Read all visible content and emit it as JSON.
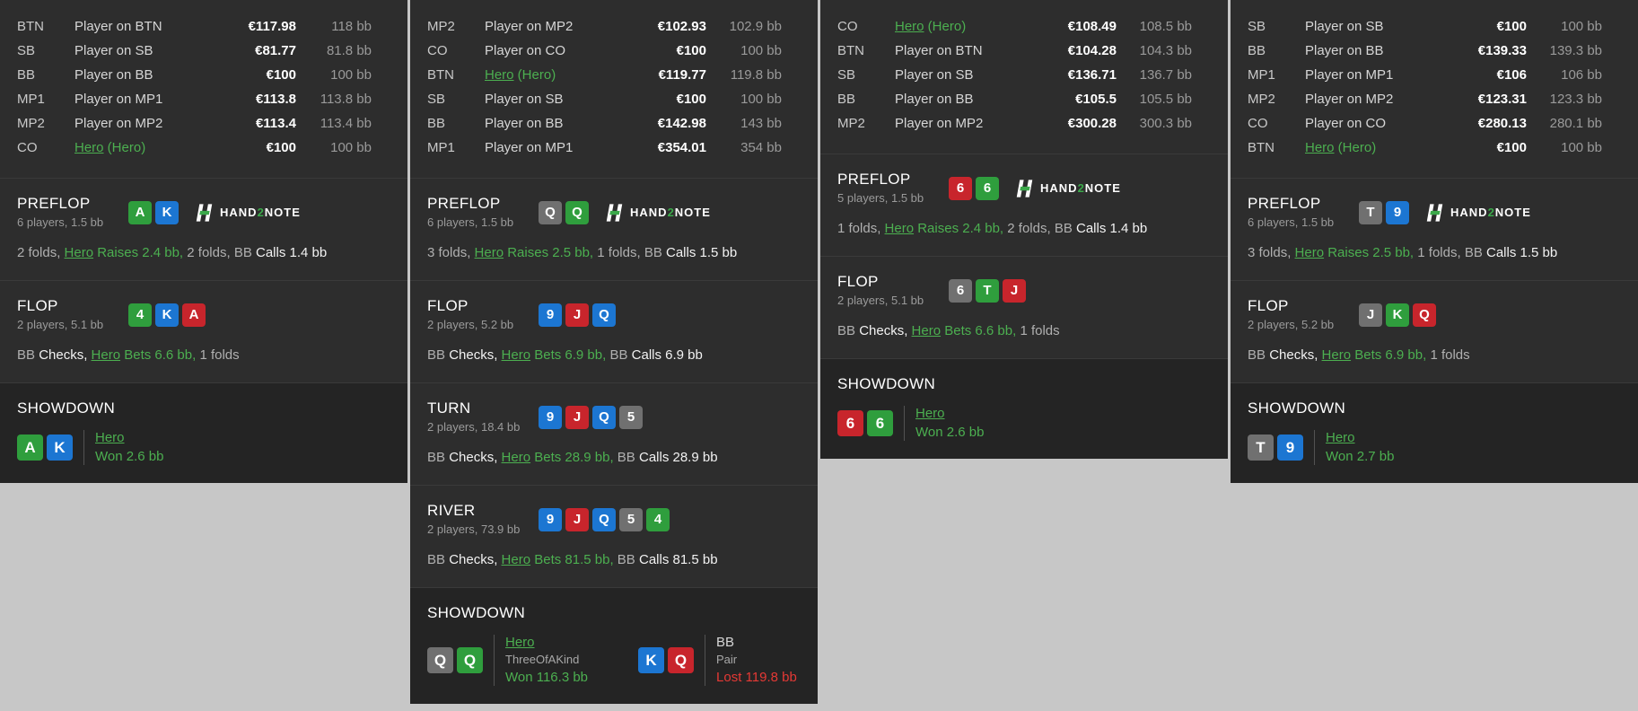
{
  "colors": {
    "page_bg": "#c7c7c7",
    "panel_bg": "#2d2d2d",
    "showdown_bg": "#242424",
    "hero_green": "#4caf50",
    "loss_red": "#e53935",
    "card_green": "#2f9e3d",
    "card_blue": "#1c76d2",
    "card_red": "#c8252c",
    "card_gray": "#707070"
  },
  "logo": {
    "left": "HAND",
    "digit": "2",
    "right": "NOTE"
  },
  "panels": [
    {
      "players": [
        {
          "pos": "BTN",
          "name": [
            {
              "text": "Player on BTN",
              "style": "plain"
            }
          ],
          "stack": "€117.98",
          "bb": "118 bb"
        },
        {
          "pos": "SB",
          "name": [
            {
              "text": "Player on SB",
              "style": "plain"
            }
          ],
          "stack": "€81.77",
          "bb": "81.8 bb"
        },
        {
          "pos": "BB",
          "name": [
            {
              "text": "Player on BB",
              "style": "plain"
            }
          ],
          "stack": "€100",
          "bb": "100 bb"
        },
        {
          "pos": "MP1",
          "name": [
            {
              "text": "Player on MP1",
              "style": "plain"
            }
          ],
          "stack": "€113.8",
          "bb": "113.8 bb"
        },
        {
          "pos": "MP2",
          "name": [
            {
              "text": "Player on MP2",
              "style": "plain"
            }
          ],
          "stack": "€113.4",
          "bb": "113.4 bb"
        },
        {
          "pos": "CO",
          "name": [
            {
              "text": "Hero",
              "style": "hero-link"
            },
            {
              "text": " (Hero)",
              "style": "hero"
            }
          ],
          "stack": "€100",
          "bb": "100 bb"
        }
      ],
      "streets": [
        {
          "type": "street",
          "name": "PREFLOP",
          "subtitle": "6 players, 1.5 bb",
          "logo": true,
          "cards": [
            {
              "rank": "A",
              "color": "green"
            },
            {
              "rank": "K",
              "color": "blue"
            }
          ],
          "action": [
            {
              "text": "2 folds, ",
              "style": "muted"
            },
            {
              "text": "Hero",
              "style": "hero-link"
            },
            {
              "text": " Raises 2.4 bb, ",
              "style": "hero"
            },
            {
              "text": "2 folds, ",
              "style": "muted"
            },
            {
              "text": "BB ",
              "style": "muted"
            },
            {
              "text": "Calls 1.4 bb",
              "style": "strong"
            }
          ]
        },
        {
          "type": "street",
          "name": "FLOP",
          "subtitle": "2 players, 5.1 bb",
          "logo": false,
          "cards": [
            {
              "rank": "4",
              "color": "green"
            },
            {
              "rank": "K",
              "color": "blue"
            },
            {
              "rank": "A",
              "color": "red"
            }
          ],
          "action": [
            {
              "text": "BB ",
              "style": "muted"
            },
            {
              "text": "Checks, ",
              "style": "strong"
            },
            {
              "text": "Hero",
              "style": "hero-link"
            },
            {
              "text": " Bets 6.6 bb, ",
              "style": "hero"
            },
            {
              "text": "1 folds",
              "style": "muted"
            }
          ]
        },
        {
          "type": "showdown",
          "name": "SHOWDOWN",
          "results": [
            {
              "cards": [
                {
                  "rank": "A",
                  "color": "green"
                },
                {
                  "rank": "K",
                  "color": "blue"
                }
              ],
              "name": [
                {
                  "text": "Hero",
                  "style": "hero-link"
                }
              ],
              "hand": null,
              "result": "Won 2.6 bb",
              "outcome": "win"
            }
          ]
        }
      ]
    },
    {
      "players": [
        {
          "pos": "MP2",
          "name": [
            {
              "text": "Player on MP2",
              "style": "plain"
            }
          ],
          "stack": "€102.93",
          "bb": "102.9 bb"
        },
        {
          "pos": "CO",
          "name": [
            {
              "text": "Player on CO",
              "style": "plain"
            }
          ],
          "stack": "€100",
          "bb": "100 bb"
        },
        {
          "pos": "BTN",
          "name": [
            {
              "text": "Hero",
              "style": "hero-link"
            },
            {
              "text": " (Hero)",
              "style": "hero"
            }
          ],
          "stack": "€119.77",
          "bb": "119.8 bb"
        },
        {
          "pos": "SB",
          "name": [
            {
              "text": "Player on SB",
              "style": "plain"
            }
          ],
          "stack": "€100",
          "bb": "100 bb"
        },
        {
          "pos": "BB",
          "name": [
            {
              "text": "Player on BB",
              "style": "plain"
            }
          ],
          "stack": "€142.98",
          "bb": "143 bb"
        },
        {
          "pos": "MP1",
          "name": [
            {
              "text": "Player on MP1",
              "style": "plain"
            }
          ],
          "stack": "€354.01",
          "bb": "354 bb"
        }
      ],
      "streets": [
        {
          "type": "street",
          "name": "PREFLOP",
          "subtitle": "6 players, 1.5 bb",
          "logo": true,
          "cards": [
            {
              "rank": "Q",
              "color": "gray"
            },
            {
              "rank": "Q",
              "color": "green"
            }
          ],
          "action": [
            {
              "text": "3 folds, ",
              "style": "muted"
            },
            {
              "text": "Hero",
              "style": "hero-link"
            },
            {
              "text": " Raises 2.5 bb, ",
              "style": "hero"
            },
            {
              "text": "1 folds, ",
              "style": "muted"
            },
            {
              "text": "BB ",
              "style": "muted"
            },
            {
              "text": "Calls 1.5 bb",
              "style": "strong"
            }
          ]
        },
        {
          "type": "street",
          "name": "FLOP",
          "subtitle": "2 players, 5.2 bb",
          "logo": false,
          "cards": [
            {
              "rank": "9",
              "color": "blue"
            },
            {
              "rank": "J",
              "color": "red"
            },
            {
              "rank": "Q",
              "color": "blue"
            }
          ],
          "action": [
            {
              "text": "BB ",
              "style": "muted"
            },
            {
              "text": "Checks, ",
              "style": "strong"
            },
            {
              "text": "Hero",
              "style": "hero-link"
            },
            {
              "text": " Bets 6.9 bb, ",
              "style": "hero"
            },
            {
              "text": "BB ",
              "style": "muted"
            },
            {
              "text": "Calls 6.9 bb",
              "style": "strong"
            }
          ]
        },
        {
          "type": "street",
          "name": "TURN",
          "subtitle": "2 players, 18.4 bb",
          "logo": false,
          "cards": [
            {
              "rank": "9",
              "color": "blue"
            },
            {
              "rank": "J",
              "color": "red"
            },
            {
              "rank": "Q",
              "color": "blue"
            },
            {
              "rank": "5",
              "color": "gray"
            }
          ],
          "action": [
            {
              "text": "BB ",
              "style": "muted"
            },
            {
              "text": "Checks, ",
              "style": "strong"
            },
            {
              "text": "Hero",
              "style": "hero-link"
            },
            {
              "text": " Bets 28.9 bb, ",
              "style": "hero"
            },
            {
              "text": "BB ",
              "style": "muted"
            },
            {
              "text": "Calls 28.9 bb",
              "style": "strong"
            }
          ]
        },
        {
          "type": "street",
          "name": "RIVER",
          "subtitle": "2 players, 73.9 bb",
          "logo": false,
          "cards": [
            {
              "rank": "9",
              "color": "blue"
            },
            {
              "rank": "J",
              "color": "red"
            },
            {
              "rank": "Q",
              "color": "blue"
            },
            {
              "rank": "5",
              "color": "gray"
            },
            {
              "rank": "4",
              "color": "green"
            }
          ],
          "action": [
            {
              "text": "BB ",
              "style": "muted"
            },
            {
              "text": "Checks, ",
              "style": "strong"
            },
            {
              "text": "Hero",
              "style": "hero-link"
            },
            {
              "text": " Bets 81.5 bb, ",
              "style": "hero"
            },
            {
              "text": "BB ",
              "style": "muted"
            },
            {
              "text": "Calls 81.5 bb",
              "style": "strong"
            }
          ]
        },
        {
          "type": "showdown",
          "name": "SHOWDOWN",
          "results": [
            {
              "cards": [
                {
                  "rank": "Q",
                  "color": "gray"
                },
                {
                  "rank": "Q",
                  "color": "green"
                }
              ],
              "name": [
                {
                  "text": "Hero",
                  "style": "hero-link"
                }
              ],
              "hand": "ThreeOfAKind",
              "result": "Won 116.3 bb",
              "outcome": "win"
            },
            {
              "cards": [
                {
                  "rank": "K",
                  "color": "blue"
                },
                {
                  "rank": "Q",
                  "color": "red"
                }
              ],
              "name": [
                {
                  "text": "BB",
                  "style": "plain"
                }
              ],
              "hand": "Pair",
              "result": "Lost 119.8 bb",
              "outcome": "loss"
            }
          ]
        }
      ]
    },
    {
      "players": [
        {
          "pos": "CO",
          "name": [
            {
              "text": "Hero",
              "style": "hero-link"
            },
            {
              "text": " (Hero)",
              "style": "hero"
            }
          ],
          "stack": "€108.49",
          "bb": "108.5 bb"
        },
        {
          "pos": "BTN",
          "name": [
            {
              "text": "Player on BTN",
              "style": "plain"
            }
          ],
          "stack": "€104.28",
          "bb": "104.3 bb"
        },
        {
          "pos": "SB",
          "name": [
            {
              "text": "Player on SB",
              "style": "plain"
            }
          ],
          "stack": "€136.71",
          "bb": "136.7 bb"
        },
        {
          "pos": "BB",
          "name": [
            {
              "text": "Player on BB",
              "style": "plain"
            }
          ],
          "stack": "€105.5",
          "bb": "105.5 bb"
        },
        {
          "pos": "MP2",
          "name": [
            {
              "text": "Player on MP2",
              "style": "plain"
            }
          ],
          "stack": "€300.28",
          "bb": "300.3 bb"
        }
      ],
      "streets": [
        {
          "type": "street",
          "name": "PREFLOP",
          "subtitle": "5 players, 1.5 bb",
          "logo": true,
          "cards": [
            {
              "rank": "6",
              "color": "red"
            },
            {
              "rank": "6",
              "color": "green"
            }
          ],
          "action": [
            {
              "text": "1 folds, ",
              "style": "muted"
            },
            {
              "text": "Hero",
              "style": "hero-link"
            },
            {
              "text": " Raises 2.4 bb, ",
              "style": "hero"
            },
            {
              "text": "2 folds, ",
              "style": "muted"
            },
            {
              "text": "BB ",
              "style": "muted"
            },
            {
              "text": "Calls 1.4 bb",
              "style": "strong"
            }
          ]
        },
        {
          "type": "street",
          "name": "FLOP",
          "subtitle": "2 players, 5.1 bb",
          "logo": false,
          "cards": [
            {
              "rank": "6",
              "color": "gray"
            },
            {
              "rank": "T",
              "color": "green"
            },
            {
              "rank": "J",
              "color": "red"
            }
          ],
          "action": [
            {
              "text": "BB ",
              "style": "muted"
            },
            {
              "text": "Checks, ",
              "style": "strong"
            },
            {
              "text": "Hero",
              "style": "hero-link"
            },
            {
              "text": " Bets 6.6 bb, ",
              "style": "hero"
            },
            {
              "text": "1 folds",
              "style": "muted"
            }
          ]
        },
        {
          "type": "showdown",
          "name": "SHOWDOWN",
          "results": [
            {
              "cards": [
                {
                  "rank": "6",
                  "color": "red"
                },
                {
                  "rank": "6",
                  "color": "green"
                }
              ],
              "name": [
                {
                  "text": "Hero",
                  "style": "hero-link"
                }
              ],
              "hand": null,
              "result": "Won 2.6 bb",
              "outcome": "win"
            }
          ]
        }
      ]
    },
    {
      "players": [
        {
          "pos": "SB",
          "name": [
            {
              "text": "Player on SB",
              "style": "plain"
            }
          ],
          "stack": "€100",
          "bb": "100 bb"
        },
        {
          "pos": "BB",
          "name": [
            {
              "text": "Player on BB",
              "style": "plain"
            }
          ],
          "stack": "€139.33",
          "bb": "139.3 bb"
        },
        {
          "pos": "MP1",
          "name": [
            {
              "text": "Player on MP1",
              "style": "plain"
            }
          ],
          "stack": "€106",
          "bb": "106 bb"
        },
        {
          "pos": "MP2",
          "name": [
            {
              "text": "Player on MP2",
              "style": "plain"
            }
          ],
          "stack": "€123.31",
          "bb": "123.3 bb"
        },
        {
          "pos": "CO",
          "name": [
            {
              "text": "Player on CO",
              "style": "plain"
            }
          ],
          "stack": "€280.13",
          "bb": "280.1 bb"
        },
        {
          "pos": "BTN",
          "name": [
            {
              "text": "Hero",
              "style": "hero-link"
            },
            {
              "text": " (Hero)",
              "style": "hero"
            }
          ],
          "stack": "€100",
          "bb": "100 bb"
        }
      ],
      "streets": [
        {
          "type": "street",
          "name": "PREFLOP",
          "subtitle": "6 players, 1.5 bb",
          "logo": true,
          "cards": [
            {
              "rank": "T",
              "color": "gray"
            },
            {
              "rank": "9",
              "color": "blue"
            }
          ],
          "action": [
            {
              "text": "3 folds, ",
              "style": "muted"
            },
            {
              "text": "Hero",
              "style": "hero-link"
            },
            {
              "text": " Raises 2.5 bb, ",
              "style": "hero"
            },
            {
              "text": "1 folds, ",
              "style": "muted"
            },
            {
              "text": "BB ",
              "style": "muted"
            },
            {
              "text": "Calls 1.5 bb",
              "style": "strong"
            }
          ]
        },
        {
          "type": "street",
          "name": "FLOP",
          "subtitle": "2 players, 5.2 bb",
          "logo": false,
          "cards": [
            {
              "rank": "J",
              "color": "gray"
            },
            {
              "rank": "K",
              "color": "green"
            },
            {
              "rank": "Q",
              "color": "red"
            }
          ],
          "action": [
            {
              "text": "BB ",
              "style": "muted"
            },
            {
              "text": "Checks, ",
              "style": "strong"
            },
            {
              "text": "Hero",
              "style": "hero-link"
            },
            {
              "text": " Bets 6.9 bb, ",
              "style": "hero"
            },
            {
              "text": "1 folds",
              "style": "muted"
            }
          ]
        },
        {
          "type": "showdown",
          "name": "SHOWDOWN",
          "results": [
            {
              "cards": [
                {
                  "rank": "T",
                  "color": "gray"
                },
                {
                  "rank": "9",
                  "color": "blue"
                }
              ],
              "name": [
                {
                  "text": "Hero",
                  "style": "hero-link"
                }
              ],
              "hand": null,
              "result": "Won 2.7 bb",
              "outcome": "win"
            }
          ]
        }
      ]
    }
  ]
}
